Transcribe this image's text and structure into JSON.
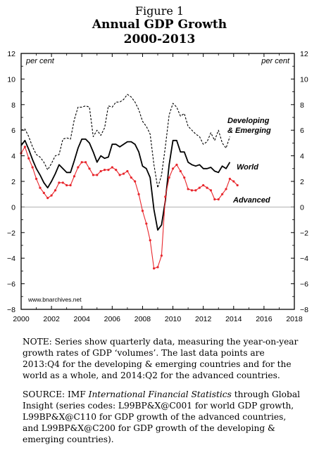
{
  "header": {
    "figure_label": "Figure 1",
    "title": "Annual GDP Growth",
    "subtitle": "2000-2013"
  },
  "chart_data": {
    "type": "line",
    "unit_label_left": "per cent",
    "unit_label_right": "per cent",
    "watermark": "www.bnarchives.net",
    "xlim": [
      2000,
      2018
    ],
    "ylim": [
      -8,
      12
    ],
    "x_ticks": [
      2000,
      2002,
      2004,
      2006,
      2008,
      2010,
      2012,
      2014,
      2016,
      2018
    ],
    "y_ticks": [
      -8,
      -6,
      -4,
      -2,
      0,
      2,
      4,
      6,
      8,
      10,
      12
    ],
    "zero_line": true,
    "colors": {
      "developing": "#000000",
      "world": "#000000",
      "advanced": "#e8262c",
      "zero_line": "#999999"
    },
    "series": [
      {
        "name": "Developing & Emerging",
        "style": "dashed",
        "x": [
          2000.0,
          2000.25,
          2000.5,
          2000.75,
          2001.0,
          2001.25,
          2001.5,
          2001.75,
          2002.0,
          2002.25,
          2002.5,
          2002.75,
          2003.0,
          2003.25,
          2003.5,
          2003.75,
          2004.0,
          2004.25,
          2004.5,
          2004.75,
          2005.0,
          2005.25,
          2005.5,
          2005.75,
          2006.0,
          2006.25,
          2006.5,
          2006.75,
          2007.0,
          2007.25,
          2007.5,
          2007.75,
          2008.0,
          2008.25,
          2008.5,
          2008.75,
          2009.0,
          2009.25,
          2009.5,
          2009.75,
          2010.0,
          2010.25,
          2010.5,
          2010.75,
          2011.0,
          2011.25,
          2011.5,
          2011.75,
          2012.0,
          2012.25,
          2012.5,
          2012.75,
          2013.0,
          2013.25,
          2013.5,
          2013.75
        ],
        "y": [
          6.0,
          6.1,
          5.5,
          4.7,
          4.1,
          3.9,
          3.5,
          2.9,
          3.4,
          4.0,
          4.1,
          5.3,
          5.4,
          5.3,
          6.8,
          7.8,
          7.8,
          7.9,
          7.8,
          5.5,
          6.0,
          5.6,
          6.2,
          7.9,
          7.8,
          8.2,
          8.2,
          8.4,
          8.8,
          8.6,
          8.2,
          7.6,
          6.7,
          6.3,
          5.7,
          3.3,
          1.5,
          2.5,
          4.7,
          7.2,
          8.1,
          7.8,
          7.1,
          7.3,
          6.3,
          6.0,
          5.7,
          5.5,
          4.9,
          5.1,
          5.8,
          5.2,
          6.0,
          5.0,
          4.6,
          5.5
        ]
      },
      {
        "name": "World",
        "style": "solid",
        "x": [
          2000.0,
          2000.25,
          2000.5,
          2000.75,
          2001.0,
          2001.25,
          2001.5,
          2001.75,
          2002.0,
          2002.25,
          2002.5,
          2002.75,
          2003.0,
          2003.25,
          2003.5,
          2003.75,
          2004.0,
          2004.25,
          2004.5,
          2004.75,
          2005.0,
          2005.25,
          2005.5,
          2005.75,
          2006.0,
          2006.25,
          2006.5,
          2006.75,
          2007.0,
          2007.25,
          2007.5,
          2007.75,
          2008.0,
          2008.25,
          2008.5,
          2008.75,
          2009.0,
          2009.25,
          2009.5,
          2009.75,
          2010.0,
          2010.25,
          2010.5,
          2010.75,
          2011.0,
          2011.25,
          2011.5,
          2011.75,
          2012.0,
          2012.25,
          2012.5,
          2012.75,
          2013.0,
          2013.25,
          2013.5,
          2013.75
        ],
        "y": [
          4.8,
          5.2,
          4.5,
          3.7,
          3.0,
          2.5,
          1.9,
          1.5,
          2.0,
          2.6,
          3.3,
          3.0,
          2.7,
          2.7,
          3.6,
          4.6,
          5.3,
          5.3,
          5.0,
          4.3,
          3.5,
          4.0,
          3.8,
          3.9,
          4.9,
          4.9,
          4.7,
          4.9,
          5.1,
          5.1,
          4.9,
          4.3,
          3.2,
          3.0,
          2.3,
          -0.2,
          -1.8,
          -1.4,
          0.5,
          3.3,
          5.2,
          5.2,
          4.3,
          4.3,
          3.5,
          3.3,
          3.2,
          3.3,
          3.0,
          3.0,
          3.1,
          2.8,
          2.7,
          3.2,
          3.0,
          3.5
        ]
      },
      {
        "name": "Advanced",
        "style": "solid-markers",
        "x": [
          2000.0,
          2000.25,
          2000.5,
          2000.75,
          2001.0,
          2001.25,
          2001.5,
          2001.75,
          2002.0,
          2002.25,
          2002.5,
          2002.75,
          2003.0,
          2003.25,
          2003.5,
          2003.75,
          2004.0,
          2004.25,
          2004.5,
          2004.75,
          2005.0,
          2005.25,
          2005.5,
          2005.75,
          2006.0,
          2006.25,
          2006.5,
          2006.75,
          2007.0,
          2007.25,
          2007.5,
          2007.75,
          2008.0,
          2008.25,
          2008.5,
          2008.75,
          2009.0,
          2009.25,
          2009.5,
          2009.75,
          2010.0,
          2010.25,
          2010.5,
          2010.75,
          2011.0,
          2011.25,
          2011.5,
          2011.75,
          2012.0,
          2012.25,
          2012.5,
          2012.75,
          2013.0,
          2013.25,
          2013.5,
          2013.75,
          2014.0,
          2014.25
        ],
        "y": [
          4.2,
          4.7,
          3.8,
          3.1,
          2.2,
          1.5,
          1.1,
          0.7,
          0.9,
          1.3,
          1.9,
          1.9,
          1.7,
          1.7,
          2.4,
          3.1,
          3.5,
          3.5,
          3.0,
          2.5,
          2.5,
          2.8,
          2.9,
          2.9,
          3.1,
          2.9,
          2.5,
          2.6,
          2.8,
          2.3,
          2.0,
          1.0,
          -0.3,
          -1.3,
          -2.6,
          -4.8,
          -4.7,
          -3.8,
          0.8,
          2.3,
          3.0,
          3.3,
          2.8,
          2.3,
          1.4,
          1.3,
          1.3,
          1.5,
          1.7,
          1.5,
          1.3,
          0.6,
          0.6,
          1.0,
          1.4,
          2.2,
          2.0,
          1.7
        ]
      }
    ],
    "annotations": [
      {
        "text": "Developing",
        "series": "Developing & Emerging"
      },
      {
        "text": "& Emerging",
        "series": "Developing & Emerging"
      },
      {
        "text": "World",
        "series": "World"
      },
      {
        "text": "Advanced",
        "series": "Advanced"
      }
    ]
  },
  "note": {
    "text": "NOTE: Series show quarterly data, measuring the year-on-year growth rates of GDP ‘volumes’. The last data points are 2013:Q4 for the developing & emerging countries and for the world as a whole, and 2014:Q2 for the advanced countries."
  },
  "source": {
    "prefix": "SOURCE: IMF ",
    "italic": "International Financial Statistics",
    "suffix": " through Global Insight (series codes: L99BP&X@C001 for world GDP growth, L99BP&X@C110 for GDP growth of the advanced countries, and L99BP&X@C200 for GDP growth of the developing & emerging countries)."
  }
}
